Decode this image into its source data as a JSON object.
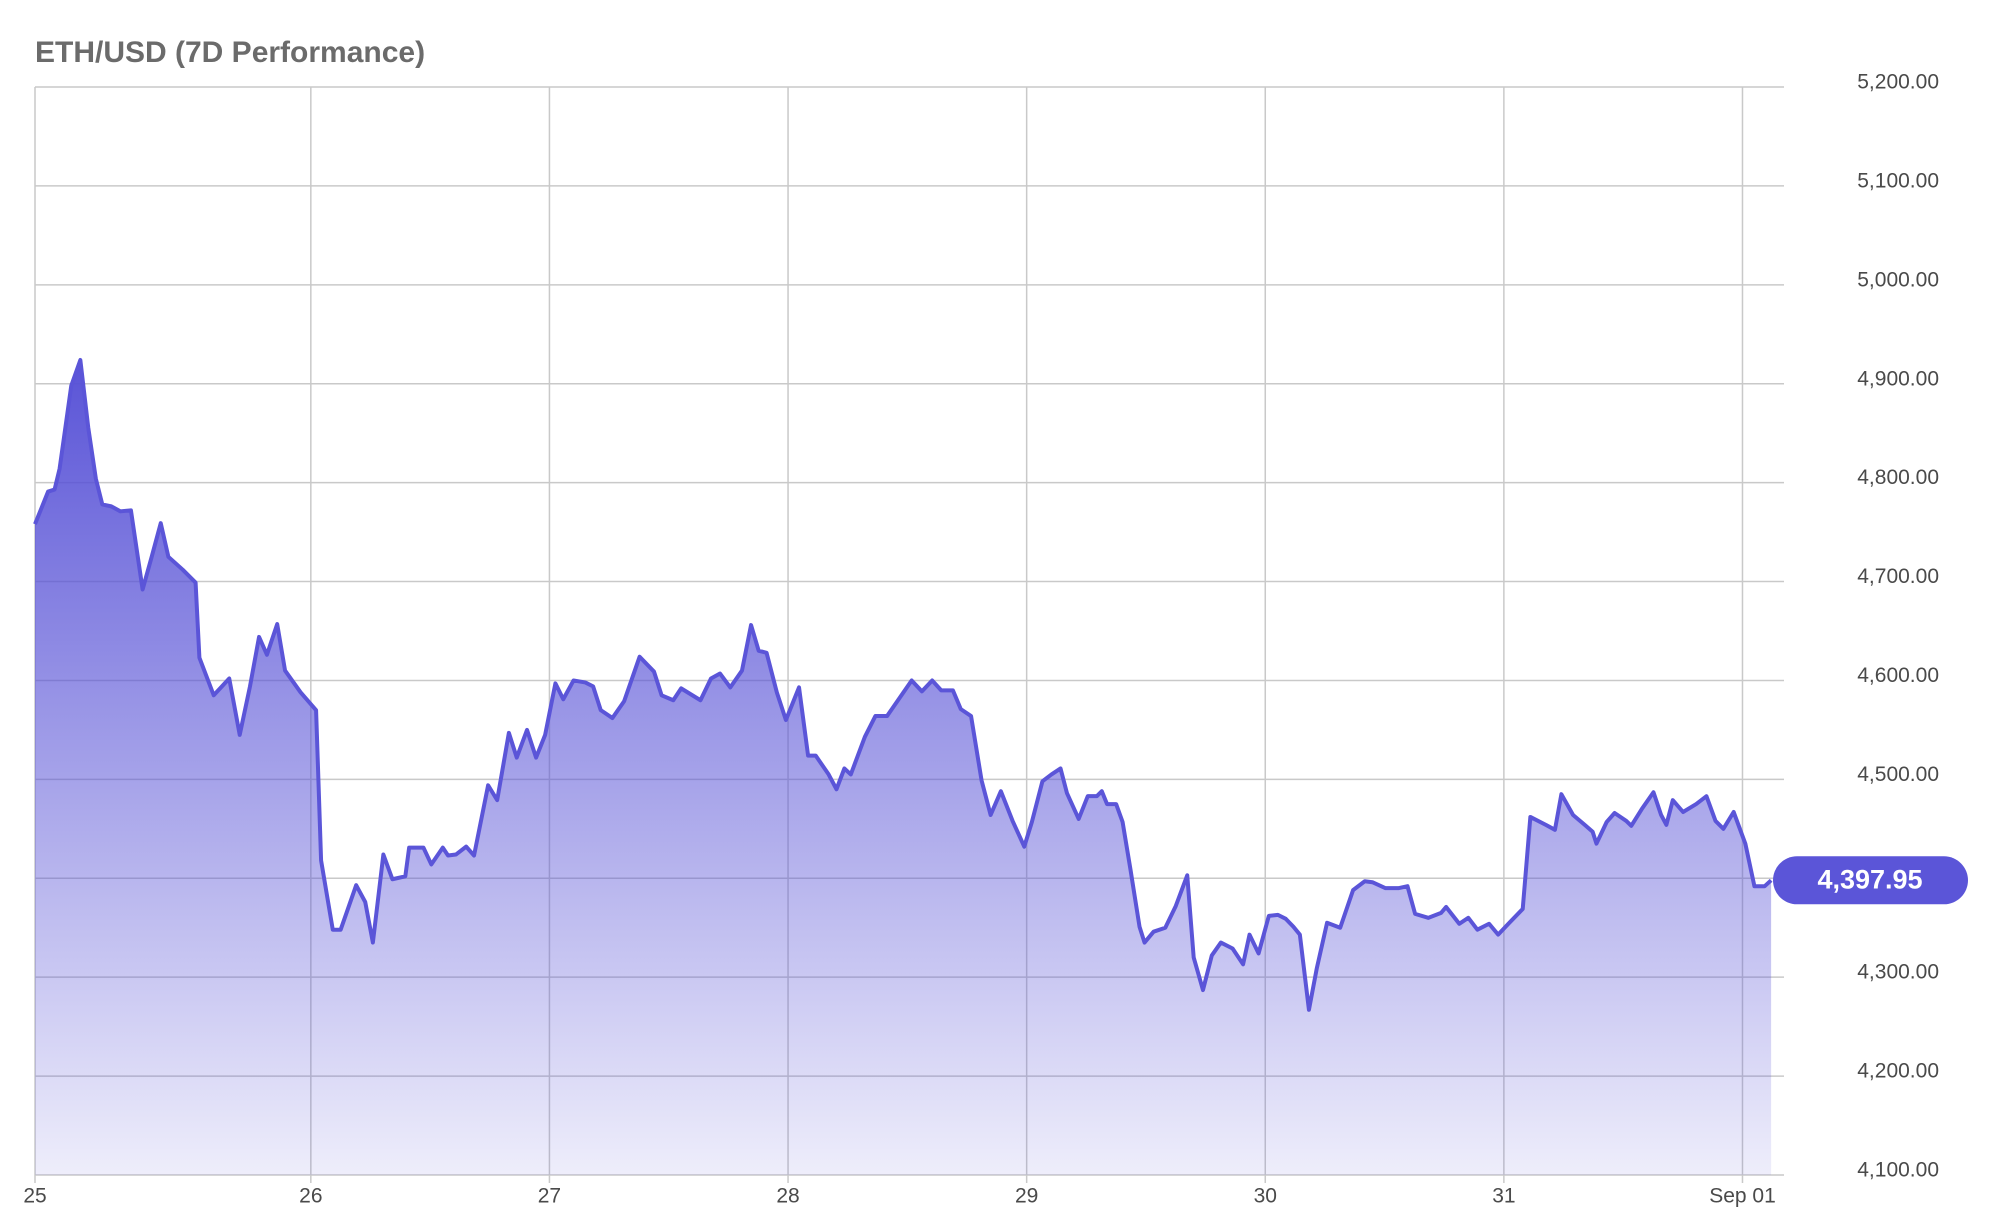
{
  "chart_data": {
    "type": "area",
    "title": "ETH/USD (7D Performance)",
    "color": "#5b55d8",
    "grid": true,
    "xlim": [
      24.844,
      32.174
    ],
    "ylim": [
      4100,
      5200
    ],
    "xticks": [
      {
        "value": 24.844,
        "label": "25"
      },
      26,
      27,
      28,
      29,
      30,
      31,
      {
        "value": 32,
        "label": "Sep 01"
      }
    ],
    "yticks": [
      {
        "value": 4100,
        "label": "4,100.00"
      },
      {
        "value": 4200,
        "label": "4,200.00"
      },
      {
        "value": 4300,
        "label": "4,300.00"
      },
      {
        "value": 4400,
        "label": "4,400.00"
      },
      {
        "value": 4500,
        "label": "4,500.00"
      },
      {
        "value": 4600,
        "label": "4,600.00"
      },
      {
        "value": 4700,
        "label": "4,700.00"
      },
      {
        "value": 4800,
        "label": "4,800.00"
      },
      {
        "value": 4900,
        "label": "4,900.00"
      },
      {
        "value": 5000,
        "label": "5,000.00"
      },
      {
        "value": 5100,
        "label": "5,100.00"
      },
      {
        "value": 5200,
        "label": "5,200.00"
      }
    ],
    "last_price": {
      "value": 4397.95,
      "label": "4,397.95"
    },
    "x": [
      24.844,
      24.899,
      24.926,
      24.947,
      24.996,
      25.034,
      25.067,
      25.099,
      25.126,
      25.164,
      25.202,
      25.246,
      25.295,
      25.333,
      25.371,
      25.403,
      25.463,
      25.517,
      25.533,
      25.593,
      25.658,
      25.702,
      25.745,
      25.783,
      25.816,
      25.859,
      25.892,
      25.957,
      26.022,
      26.043,
      26.092,
      26.125,
      26.19,
      26.228,
      26.26,
      26.304,
      26.342,
      26.396,
      26.412,
      26.472,
      26.505,
      26.553,
      26.575,
      26.608,
      26.651,
      26.684,
      26.743,
      26.781,
      26.83,
      26.863,
      26.906,
      26.944,
      26.982,
      27.025,
      27.058,
      27.101,
      27.15,
      27.183,
      27.215,
      27.264,
      27.313,
      27.378,
      27.438,
      27.47,
      27.519,
      27.552,
      27.633,
      27.677,
      27.715,
      27.758,
      27.807,
      27.845,
      27.877,
      27.91,
      27.953,
      27.991,
      28.046,
      28.084,
      28.116,
      28.17,
      28.203,
      28.236,
      28.263,
      28.322,
      28.366,
      28.415,
      28.518,
      28.561,
      28.604,
      28.642,
      28.691,
      28.724,
      28.767,
      28.811,
      28.849,
      28.892,
      28.941,
      28.99,
      29.022,
      29.066,
      29.104,
      29.142,
      29.169,
      29.218,
      29.256,
      29.294,
      29.315,
      29.337,
      29.375,
      29.402,
      29.435,
      29.473,
      29.494,
      29.532,
      29.581,
      29.625,
      29.673,
      29.7,
      29.739,
      29.776,
      29.814,
      29.863,
      29.907,
      29.934,
      29.972,
      30.015,
      30.053,
      30.086,
      30.118,
      30.145,
      30.183,
      30.216,
      30.259,
      30.314,
      30.368,
      30.417,
      30.449,
      30.504,
      30.558,
      30.596,
      30.628,
      30.683,
      30.737,
      30.758,
      30.813,
      30.851,
      30.889,
      30.938,
      30.976,
      31.019,
      31.079,
      31.111,
      31.176,
      31.214,
      31.241,
      31.29,
      31.339,
      31.372,
      31.388,
      31.431,
      31.464,
      31.513,
      31.534,
      31.578,
      31.627,
      31.659,
      31.681,
      31.708,
      31.751,
      31.806,
      31.849,
      31.887,
      31.92,
      31.963,
      32.012,
      32.05,
      32.093,
      32.12
    ],
    "values": [
      4758,
      4791,
      4793,
      4814,
      4898,
      4924,
      4856,
      4804,
      4778,
      4776,
      4771,
      4772,
      4692,
      4725,
      4759,
      4725,
      4712,
      4699,
      4623,
      4585,
      4602,
      4545,
      4594,
      4644,
      4626,
      4657,
      4610,
      4588,
      4570,
      4418,
      4348,
      4348,
      4393,
      4376,
      4335,
      4424,
      4399,
      4402,
      4431,
      4431,
      4414,
      4431,
      4423,
      4424,
      4432,
      4423,
      4494,
      4479,
      4547,
      4522,
      4550,
      4522,
      4545,
      4597,
      4581,
      4600,
      4598,
      4594,
      4570,
      4562,
      4579,
      4624,
      4609,
      4585,
      4580,
      4592,
      4580,
      4602,
      4607,
      4593,
      4610,
      4656,
      4630,
      4628,
      4588,
      4560,
      4593,
      4524,
      4524,
      4505,
      4490,
      4511,
      4505,
      4543,
      4564,
      4564,
      4600,
      4589,
      4600,
      4590,
      4590,
      4571,
      4564,
      4499,
      4464,
      4488,
      4458,
      4432,
      4457,
      4498,
      4505,
      4511,
      4486,
      4460,
      4483,
      4483,
      4488,
      4475,
      4475,
      4457,
      4409,
      4351,
      4335,
      4346,
      4350,
      4372,
      4403,
      4320,
      4287,
      4322,
      4335,
      4329,
      4313,
      4343,
      4324,
      4362,
      4363,
      4359,
      4351,
      4343,
      4267,
      4309,
      4355,
      4350,
      4388,
      4397,
      4396,
      4390,
      4390,
      4392,
      4364,
      4360,
      4365,
      4371,
      4354,
      4360,
      4348,
      4354,
      4343,
      4354,
      4369,
      4462,
      4454,
      4449,
      4485,
      4464,
      4454,
      4447,
      4435,
      4457,
      4466,
      4458,
      4453,
      4470,
      4487,
      4464,
      4454,
      4479,
      4467,
      4475,
      4483,
      4458,
      4450,
      4467,
      4435,
      4392,
      4392,
      4397.95
    ]
  }
}
